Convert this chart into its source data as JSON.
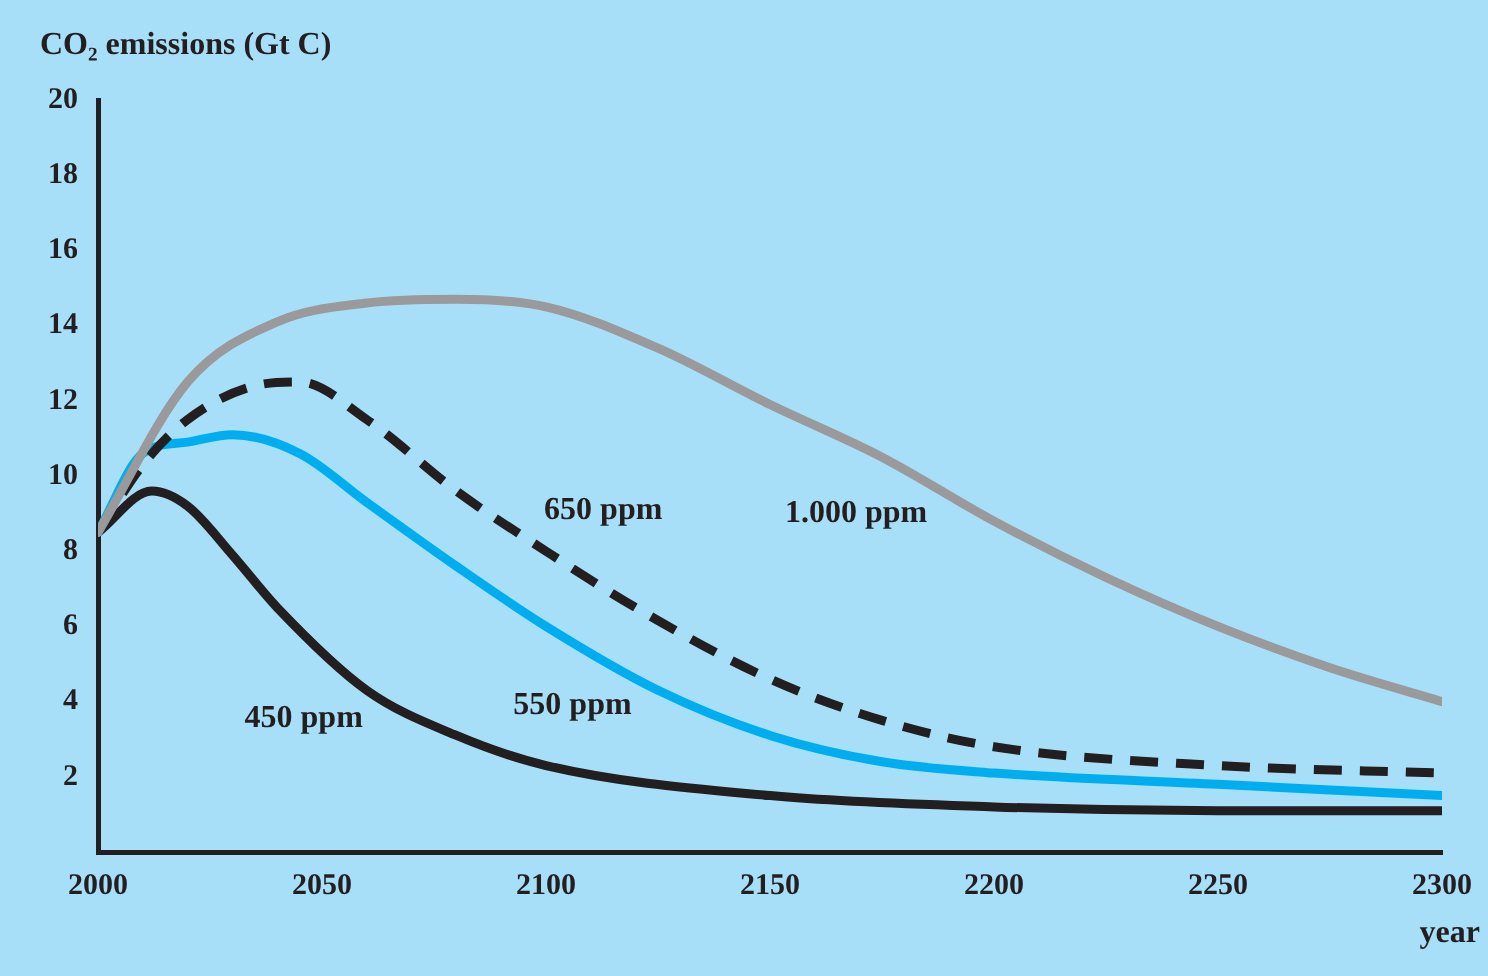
{
  "chart_data": {
    "type": "line",
    "ylabel": "CO₂ emissions (Gt C)",
    "xlabel": "year",
    "xlim": [
      2000,
      2300
    ],
    "xticks": [
      2000,
      2050,
      2100,
      2150,
      2200,
      2250,
      2300
    ],
    "ylim": [
      0,
      20
    ],
    "yticks": [
      2,
      4,
      6,
      8,
      10,
      12,
      14,
      16,
      18,
      20
    ],
    "grid": false,
    "legend": false,
    "marker": "none",
    "series": [
      {
        "name": "1.000 ppm",
        "color": "#9a9a9c",
        "line_style": "solid",
        "x": [
          2000,
          2020,
          2040,
          2060,
          2080,
          2100,
          2125,
          2150,
          2175,
          2200,
          2225,
          2250,
          2275,
          2300
        ],
        "values": [
          8.5,
          12.5,
          14.1,
          14.6,
          14.7,
          14.5,
          13.4,
          11.9,
          10.5,
          8.8,
          7.3,
          6.0,
          4.9,
          4.0
        ]
      },
      {
        "name": "650 ppm",
        "color": "#231f20",
        "line_style": "dashed",
        "x": [
          2000,
          2010,
          2020,
          2035,
          2045,
          2060,
          2080,
          2100,
          2120,
          2150,
          2175,
          2200,
          2250,
          2300
        ],
        "values": [
          8.5,
          10.3,
          11.5,
          12.4,
          12.5,
          11.5,
          9.6,
          8.0,
          6.5,
          4.6,
          3.5,
          2.8,
          2.3,
          2.1
        ]
      },
      {
        "name": "550 ppm",
        "color": "#00aeef",
        "line_style": "solid",
        "x": [
          2000,
          2010,
          2020,
          2030,
          2045,
          2060,
          2080,
          2100,
          2125,
          2150,
          2175,
          2200,
          2250,
          2300
        ],
        "values": [
          8.5,
          10.6,
          10.9,
          11.1,
          10.6,
          9.3,
          7.6,
          6.0,
          4.3,
          3.1,
          2.4,
          2.1,
          1.8,
          1.5
        ]
      },
      {
        "name": "450 ppm",
        "color": "#231f20",
        "line_style": "solid",
        "x": [
          2000,
          2012,
          2020,
          2030,
          2040,
          2060,
          2080,
          2100,
          2150,
          2200,
          2250,
          2300
        ],
        "values": [
          8.5,
          9.6,
          9.2,
          7.9,
          6.5,
          4.3,
          3.1,
          2.3,
          1.5,
          1.2,
          1.1,
          1.1
        ]
      }
    ]
  }
}
